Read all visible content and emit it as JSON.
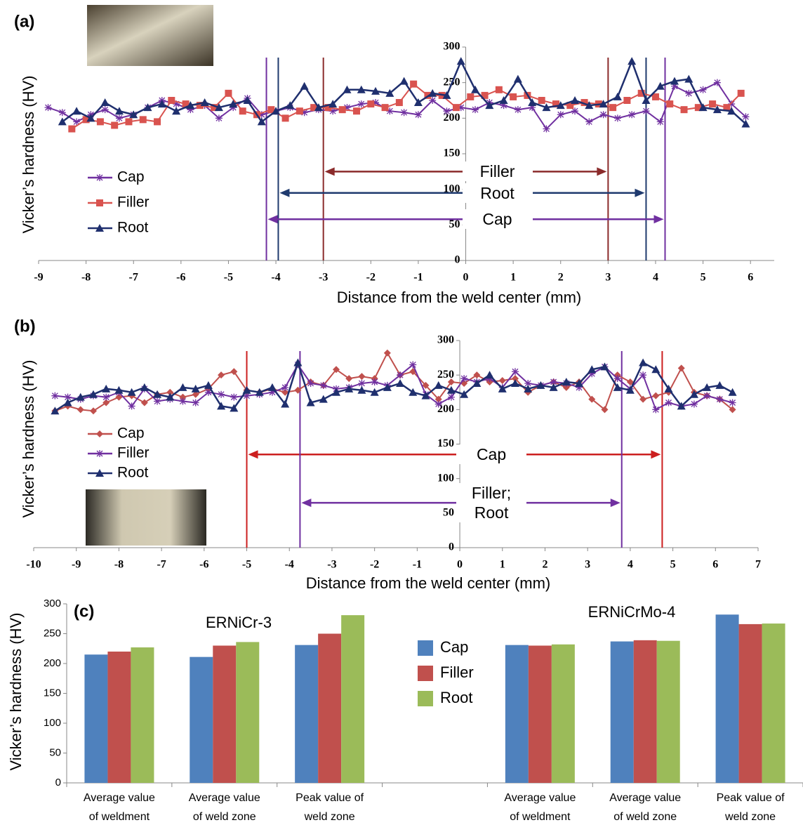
{
  "chart_data": [
    {
      "type": "line",
      "panel_label": "(a)",
      "x_label": "Distance from the weld center (mm)",
      "y_label": "Vicker’s hardness (HV)",
      "xlim": [
        -9,
        6.5
      ],
      "ylim": [
        0,
        300
      ],
      "xticks": [
        -9,
        -8,
        -7,
        -6,
        -5,
        -4,
        -3,
        -2,
        -1,
        0,
        1,
        2,
        3,
        4,
        5,
        6
      ],
      "yticks": [
        0,
        50,
        100,
        150,
        200,
        250,
        300
      ],
      "series": [
        {
          "name": "Cap",
          "color": "#7030a0",
          "marker": "asterisk",
          "x": [
            -8.8,
            -8.5,
            -8.2,
            -7.9,
            -7.6,
            -7.3,
            -7.0,
            -6.7,
            -6.4,
            -6.1,
            -5.8,
            -5.5,
            -5.2,
            -4.9,
            -4.6,
            -4.3,
            -4.0,
            -3.7,
            -3.4,
            -3.1,
            -2.8,
            -2.5,
            -2.2,
            -1.9,
            -1.6,
            -1.3,
            -1.0,
            -0.7,
            -0.4,
            -0.1,
            0.2,
            0.5,
            0.8,
            1.1,
            1.4,
            1.7,
            2.0,
            2.3,
            2.6,
            2.9,
            3.2,
            3.5,
            3.8,
            4.1,
            4.4,
            4.7,
            5.0,
            5.3,
            5.6,
            5.9
          ],
          "values": [
            215,
            208,
            195,
            205,
            212,
            200,
            205,
            215,
            225,
            220,
            212,
            218,
            200,
            215,
            228,
            205,
            210,
            215,
            208,
            212,
            210,
            215,
            220,
            222,
            210,
            208,
            205,
            225,
            210,
            215,
            212,
            222,
            218,
            212,
            215,
            185,
            205,
            210,
            195,
            205,
            200,
            205,
            210,
            195,
            245,
            235,
            240,
            250,
            220,
            202
          ]
        },
        {
          "name": "Filler",
          "color": "#d9534f",
          "marker": "square",
          "x": [
            -8.3,
            -8.0,
            -7.7,
            -7.4,
            -7.1,
            -6.8,
            -6.5,
            -6.2,
            -5.9,
            -5.6,
            -5.3,
            -5.0,
            -4.7,
            -4.4,
            -4.1,
            -3.8,
            -3.5,
            -3.2,
            -2.9,
            -2.6,
            -2.3,
            -2.0,
            -1.7,
            -1.4,
            -1.1,
            -0.8,
            -0.5,
            -0.2,
            0.1,
            0.4,
            0.7,
            1.0,
            1.3,
            1.6,
            1.9,
            2.2,
            2.5,
            2.8,
            3.1,
            3.4,
            3.7,
            4.0,
            4.3,
            4.6,
            4.9,
            5.2,
            5.5,
            5.8
          ],
          "values": [
            185,
            198,
            195,
            190,
            195,
            198,
            195,
            225,
            220,
            218,
            215,
            235,
            210,
            205,
            212,
            200,
            210,
            215,
            215,
            212,
            210,
            220,
            215,
            222,
            248,
            232,
            232,
            215,
            230,
            232,
            240,
            230,
            232,
            225,
            220,
            218,
            222,
            220,
            215,
            225,
            235,
            230,
            220,
            212,
            215,
            220,
            215,
            235
          ]
        },
        {
          "name": "Root",
          "color": "#1f2f6e",
          "marker": "triangle",
          "x": [
            -8.5,
            -8.2,
            -7.9,
            -7.6,
            -7.3,
            -7.0,
            -6.7,
            -6.4,
            -6.1,
            -5.8,
            -5.5,
            -5.2,
            -4.9,
            -4.6,
            -4.3,
            -4.0,
            -3.7,
            -3.4,
            -3.1,
            -2.8,
            -2.5,
            -2.2,
            -1.9,
            -1.6,
            -1.3,
            -1.0,
            -0.7,
            -0.4,
            -0.1,
            0.2,
            0.5,
            0.8,
            1.1,
            1.4,
            1.7,
            2.0,
            2.3,
            2.6,
            2.9,
            3.2,
            3.5,
            3.8,
            4.1,
            4.4,
            4.7,
            5.0,
            5.3,
            5.6,
            5.9
          ],
          "values": [
            195,
            210,
            200,
            222,
            210,
            205,
            215,
            220,
            210,
            218,
            222,
            215,
            220,
            225,
            195,
            210,
            218,
            245,
            215,
            220,
            240,
            240,
            238,
            235,
            252,
            222,
            235,
            232,
            280,
            240,
            218,
            225,
            255,
            222,
            215,
            218,
            225,
            218,
            220,
            230,
            280,
            225,
            245,
            252,
            255,
            215,
            212,
            210,
            192
          ]
        }
      ],
      "regions": [
        {
          "label": "Filler",
          "from": -3,
          "to": 3,
          "y": 125,
          "color": "#8b2b2b"
        },
        {
          "label": "Root",
          "from": -3.95,
          "to": 3.8,
          "y": 95,
          "color": "#1f3a6e"
        },
        {
          "label": "Cap",
          "from": -4.2,
          "to": 4.2,
          "y": 58,
          "color": "#7030a0"
        }
      ]
    },
    {
      "type": "line",
      "panel_label": "(b)",
      "x_label": "Distance from the weld center (mm)",
      "y_label": "Vicker’s hardness (HV)",
      "xlim": [
        -10,
        7
      ],
      "ylim": [
        0,
        300
      ],
      "xticks": [
        -10,
        -9,
        -8,
        -7,
        -6,
        -5,
        -4,
        -3,
        -2,
        -1,
        0,
        1,
        2,
        3,
        4,
        5,
        6,
        7
      ],
      "yticks": [
        0,
        50,
        100,
        150,
        200,
        250,
        300
      ],
      "series": [
        {
          "name": "Cap",
          "color": "#c0504d",
          "marker": "diamond",
          "x": [
            -9.5,
            -9.2,
            -8.9,
            -8.6,
            -8.3,
            -8.0,
            -7.7,
            -7.4,
            -7.1,
            -6.8,
            -6.5,
            -6.2,
            -5.9,
            -5.6,
            -5.3,
            -5.0,
            -4.7,
            -4.4,
            -4.1,
            -3.8,
            -3.5,
            -3.2,
            -2.9,
            -2.6,
            -2.3,
            -2.0,
            -1.7,
            -1.4,
            -1.1,
            -0.8,
            -0.5,
            -0.2,
            0.1,
            0.4,
            0.7,
            1.0,
            1.3,
            1.6,
            1.9,
            2.2,
            2.5,
            2.8,
            3.1,
            3.4,
            3.7,
            4.0,
            4.3,
            4.6,
            4.9,
            5.2,
            5.5,
            5.8,
            6.1,
            6.4
          ],
          "values": [
            198,
            205,
            200,
            198,
            210,
            218,
            220,
            210,
            222,
            225,
            218,
            222,
            230,
            250,
            255,
            228,
            225,
            230,
            225,
            228,
            240,
            235,
            258,
            245,
            248,
            245,
            282,
            250,
            255,
            235,
            215,
            240,
            238,
            250,
            240,
            242,
            245,
            225,
            235,
            240,
            232,
            240,
            215,
            200,
            250,
            240,
            215,
            220,
            225,
            260,
            225,
            220,
            215,
            200
          ]
        },
        {
          "name": "Filler",
          "color": "#7030a0",
          "marker": "asterisk",
          "x": [
            -9.5,
            -9.2,
            -8.9,
            -8.6,
            -8.3,
            -8.0,
            -7.7,
            -7.4,
            -7.1,
            -6.8,
            -6.5,
            -6.2,
            -5.9,
            -5.6,
            -5.3,
            -5.0,
            -4.7,
            -4.4,
            -4.1,
            -3.8,
            -3.5,
            -3.2,
            -2.9,
            -2.6,
            -2.3,
            -2.0,
            -1.7,
            -1.4,
            -1.1,
            -0.8,
            -0.5,
            -0.2,
            0.1,
            0.4,
            0.7,
            1.0,
            1.3,
            1.6,
            1.9,
            2.2,
            2.5,
            2.8,
            3.1,
            3.4,
            3.7,
            4.0,
            4.3,
            4.6,
            4.9,
            5.2,
            5.5,
            5.8,
            6.1,
            6.4
          ],
          "values": [
            220,
            218,
            215,
            220,
            218,
            225,
            205,
            230,
            212,
            215,
            212,
            210,
            225,
            222,
            218,
            220,
            222,
            225,
            232,
            265,
            238,
            235,
            230,
            232,
            238,
            240,
            235,
            250,
            265,
            222,
            208,
            218,
            245,
            240,
            245,
            232,
            255,
            238,
            235,
            240,
            238,
            232,
            252,
            262,
            245,
            230,
            250,
            200,
            210,
            205,
            208,
            220,
            215,
            210
          ]
        },
        {
          "name": "Root",
          "color": "#1f2f6e",
          "marker": "triangle",
          "x": [
            -9.5,
            -9.2,
            -8.9,
            -8.6,
            -8.3,
            -8.0,
            -7.7,
            -7.4,
            -7.1,
            -6.8,
            -6.5,
            -6.2,
            -5.9,
            -5.6,
            -5.3,
            -5.0,
            -4.7,
            -4.4,
            -4.1,
            -3.8,
            -3.5,
            -3.2,
            -2.9,
            -2.6,
            -2.3,
            -2.0,
            -1.7,
            -1.4,
            -1.1,
            -0.8,
            -0.5,
            -0.2,
            0.1,
            0.4,
            0.7,
            1.0,
            1.3,
            1.6,
            1.9,
            2.2,
            2.5,
            2.8,
            3.1,
            3.4,
            3.7,
            4.0,
            4.3,
            4.6,
            4.9,
            5.2,
            5.5,
            5.8,
            6.1,
            6.4
          ],
          "values": [
            198,
            210,
            218,
            222,
            230,
            228,
            225,
            232,
            222,
            218,
            232,
            230,
            235,
            205,
            202,
            228,
            225,
            232,
            208,
            268,
            210,
            215,
            225,
            230,
            228,
            225,
            232,
            238,
            225,
            220,
            235,
            228,
            222,
            238,
            250,
            230,
            238,
            230,
            235,
            232,
            240,
            238,
            258,
            262,
            232,
            228,
            268,
            258,
            230,
            205,
            222,
            232,
            235,
            225
          ]
        }
      ],
      "regions": [
        {
          "label": "Cap",
          "from": -5,
          "to": 4.75,
          "y": 135,
          "color": "#cc1f1f"
        },
        {
          "label": "Filler; Root",
          "from": -3.75,
          "to": 3.8,
          "y": 65,
          "color": "#7030a0"
        }
      ]
    },
    {
      "type": "bar",
      "panel_label": "(c)",
      "y_label": "Vicker’s hardness (HV)",
      "ylim": [
        0,
        300
      ],
      "yticks": [
        0,
        50,
        100,
        150,
        200,
        250,
        300
      ],
      "annotations": [
        "ERNiCr-3",
        "ERNiCrMo-4"
      ],
      "categories": [
        "Average value of weldment",
        "Average value of weld zone",
        "Peak value of weld zone",
        null,
        "Average value of weldment",
        "Average value of weld zone",
        "Peak value of weld zone"
      ],
      "series": [
        {
          "name": "Cap",
          "color": "#4f81bd",
          "values": [
            215,
            211,
            231,
            null,
            231,
            237,
            282
          ]
        },
        {
          "name": "Filler",
          "color": "#c0504d",
          "values": [
            220,
            230,
            250,
            null,
            230,
            239,
            266
          ]
        },
        {
          "name": "Root",
          "color": "#9bbb59",
          "values": [
            227,
            236,
            281,
            null,
            232,
            238,
            267
          ]
        }
      ]
    }
  ]
}
